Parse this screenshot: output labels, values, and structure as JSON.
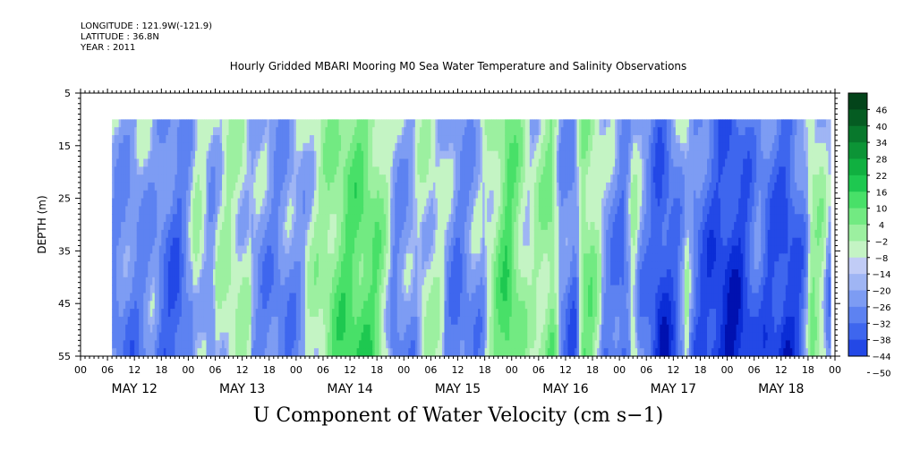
{
  "header": {
    "longitude": "LONGITUDE : 121.9W(-121.9)",
    "latitude": "LATITUDE : 36.8N",
    "year": "YEAR : 2011"
  },
  "chart_data": {
    "type": "heatmap",
    "title": "Hourly Gridded MBARI Mooring M0 Sea Water Temperature and Salinity Observations",
    "variable_title": "U Component of Water Velocity (cm s−1)",
    "ylabel": "DEPTH (m)",
    "xlabel": "",
    "y_inverted": true,
    "ylim": [
      5,
      55
    ],
    "y_ticks": [
      5,
      15,
      25,
      35,
      45,
      55
    ],
    "x_hour_ticks": [
      "00",
      "06",
      "12",
      "18",
      "00",
      "06",
      "12",
      "18",
      "00",
      "06",
      "12",
      "18",
      "00",
      "06",
      "12",
      "18",
      "00",
      "06",
      "12",
      "18",
      "00",
      "06",
      "12",
      "18",
      "00",
      "06",
      "12",
      "18",
      "00"
    ],
    "x_days": [
      "MAY 12",
      "MAY 13",
      "MAY 14",
      "MAY 15",
      "MAY 16",
      "MAY 17",
      "MAY 18"
    ],
    "colorbar": {
      "levels": [
        -50,
        -44,
        -38,
        -32,
        -26,
        -20,
        -14,
        -8,
        -2,
        4,
        10,
        16,
        22,
        28,
        34,
        40,
        46
      ],
      "labels": [
        "46",
        "40",
        "34",
        "28",
        "22",
        "16",
        "10",
        "4",
        "−2",
        "−8",
        "−14",
        "−20",
        "−26",
        "−32",
        "−38",
        "−44",
        "−50"
      ],
      "negative_colors": [
        "#00004e",
        "#00007a",
        "#0011b0",
        "#0b2dd6",
        "#2348e6",
        "#3e66ee",
        "#5d82f1",
        "#7d9cf3",
        "#9fb5f4",
        "#c1ccf6"
      ],
      "positive_colors": [
        "#c4f4c4",
        "#9cf0a0",
        "#72ea82",
        "#48e068",
        "#1ec850",
        "#10b040",
        "#0c9436",
        "#08782c",
        "#055c22",
        "#03441a"
      ]
    },
    "data_depth_range": [
      10,
      55
    ],
    "data_time_start_hour": 7,
    "data_time_end_hour": 167,
    "field_time_anchors": [
      [
        7,
        -4
      ],
      [
        12,
        -6
      ],
      [
        16,
        -2
      ],
      [
        19,
        -10
      ],
      [
        22,
        -12
      ],
      [
        26,
        4
      ],
      [
        29,
        -2
      ],
      [
        33,
        6
      ],
      [
        36,
        4
      ],
      [
        40,
        -4
      ],
      [
        44,
        -6
      ],
      [
        47,
        -4
      ],
      [
        50,
        0
      ],
      [
        54,
        8
      ],
      [
        57,
        14
      ],
      [
        60,
        18
      ],
      [
        63,
        18
      ],
      [
        66,
        14
      ],
      [
        70,
        -4
      ],
      [
        74,
        -2
      ],
      [
        77,
        4
      ],
      [
        80,
        2
      ],
      [
        84,
        -8
      ],
      [
        87,
        -4
      ],
      [
        90,
        0
      ],
      [
        93,
        12
      ],
      [
        95,
        20
      ],
      [
        97,
        14
      ],
      [
        100,
        2
      ],
      [
        103,
        8
      ],
      [
        105,
        14
      ],
      [
        107,
        -4
      ],
      [
        110,
        -10
      ],
      [
        112,
        14
      ],
      [
        114,
        10
      ],
      [
        117,
        -4
      ],
      [
        119,
        -6
      ],
      [
        121,
        -12
      ],
      [
        123,
        4
      ],
      [
        125,
        -4
      ],
      [
        127,
        -10
      ],
      [
        129,
        -20
      ],
      [
        131,
        -16
      ],
      [
        133,
        -8
      ],
      [
        135,
        2
      ],
      [
        137,
        -10
      ],
      [
        139,
        -14
      ],
      [
        141,
        -18
      ],
      [
        143,
        -20
      ],
      [
        145,
        -22
      ],
      [
        147,
        -20
      ],
      [
        149,
        -14
      ],
      [
        151,
        -8
      ],
      [
        153,
        -14
      ],
      [
        155,
        -16
      ],
      [
        157,
        -20
      ],
      [
        159,
        -16
      ],
      [
        161,
        -8
      ],
      [
        163,
        10
      ],
      [
        165,
        6
      ],
      [
        167,
        -4
      ]
    ]
  }
}
